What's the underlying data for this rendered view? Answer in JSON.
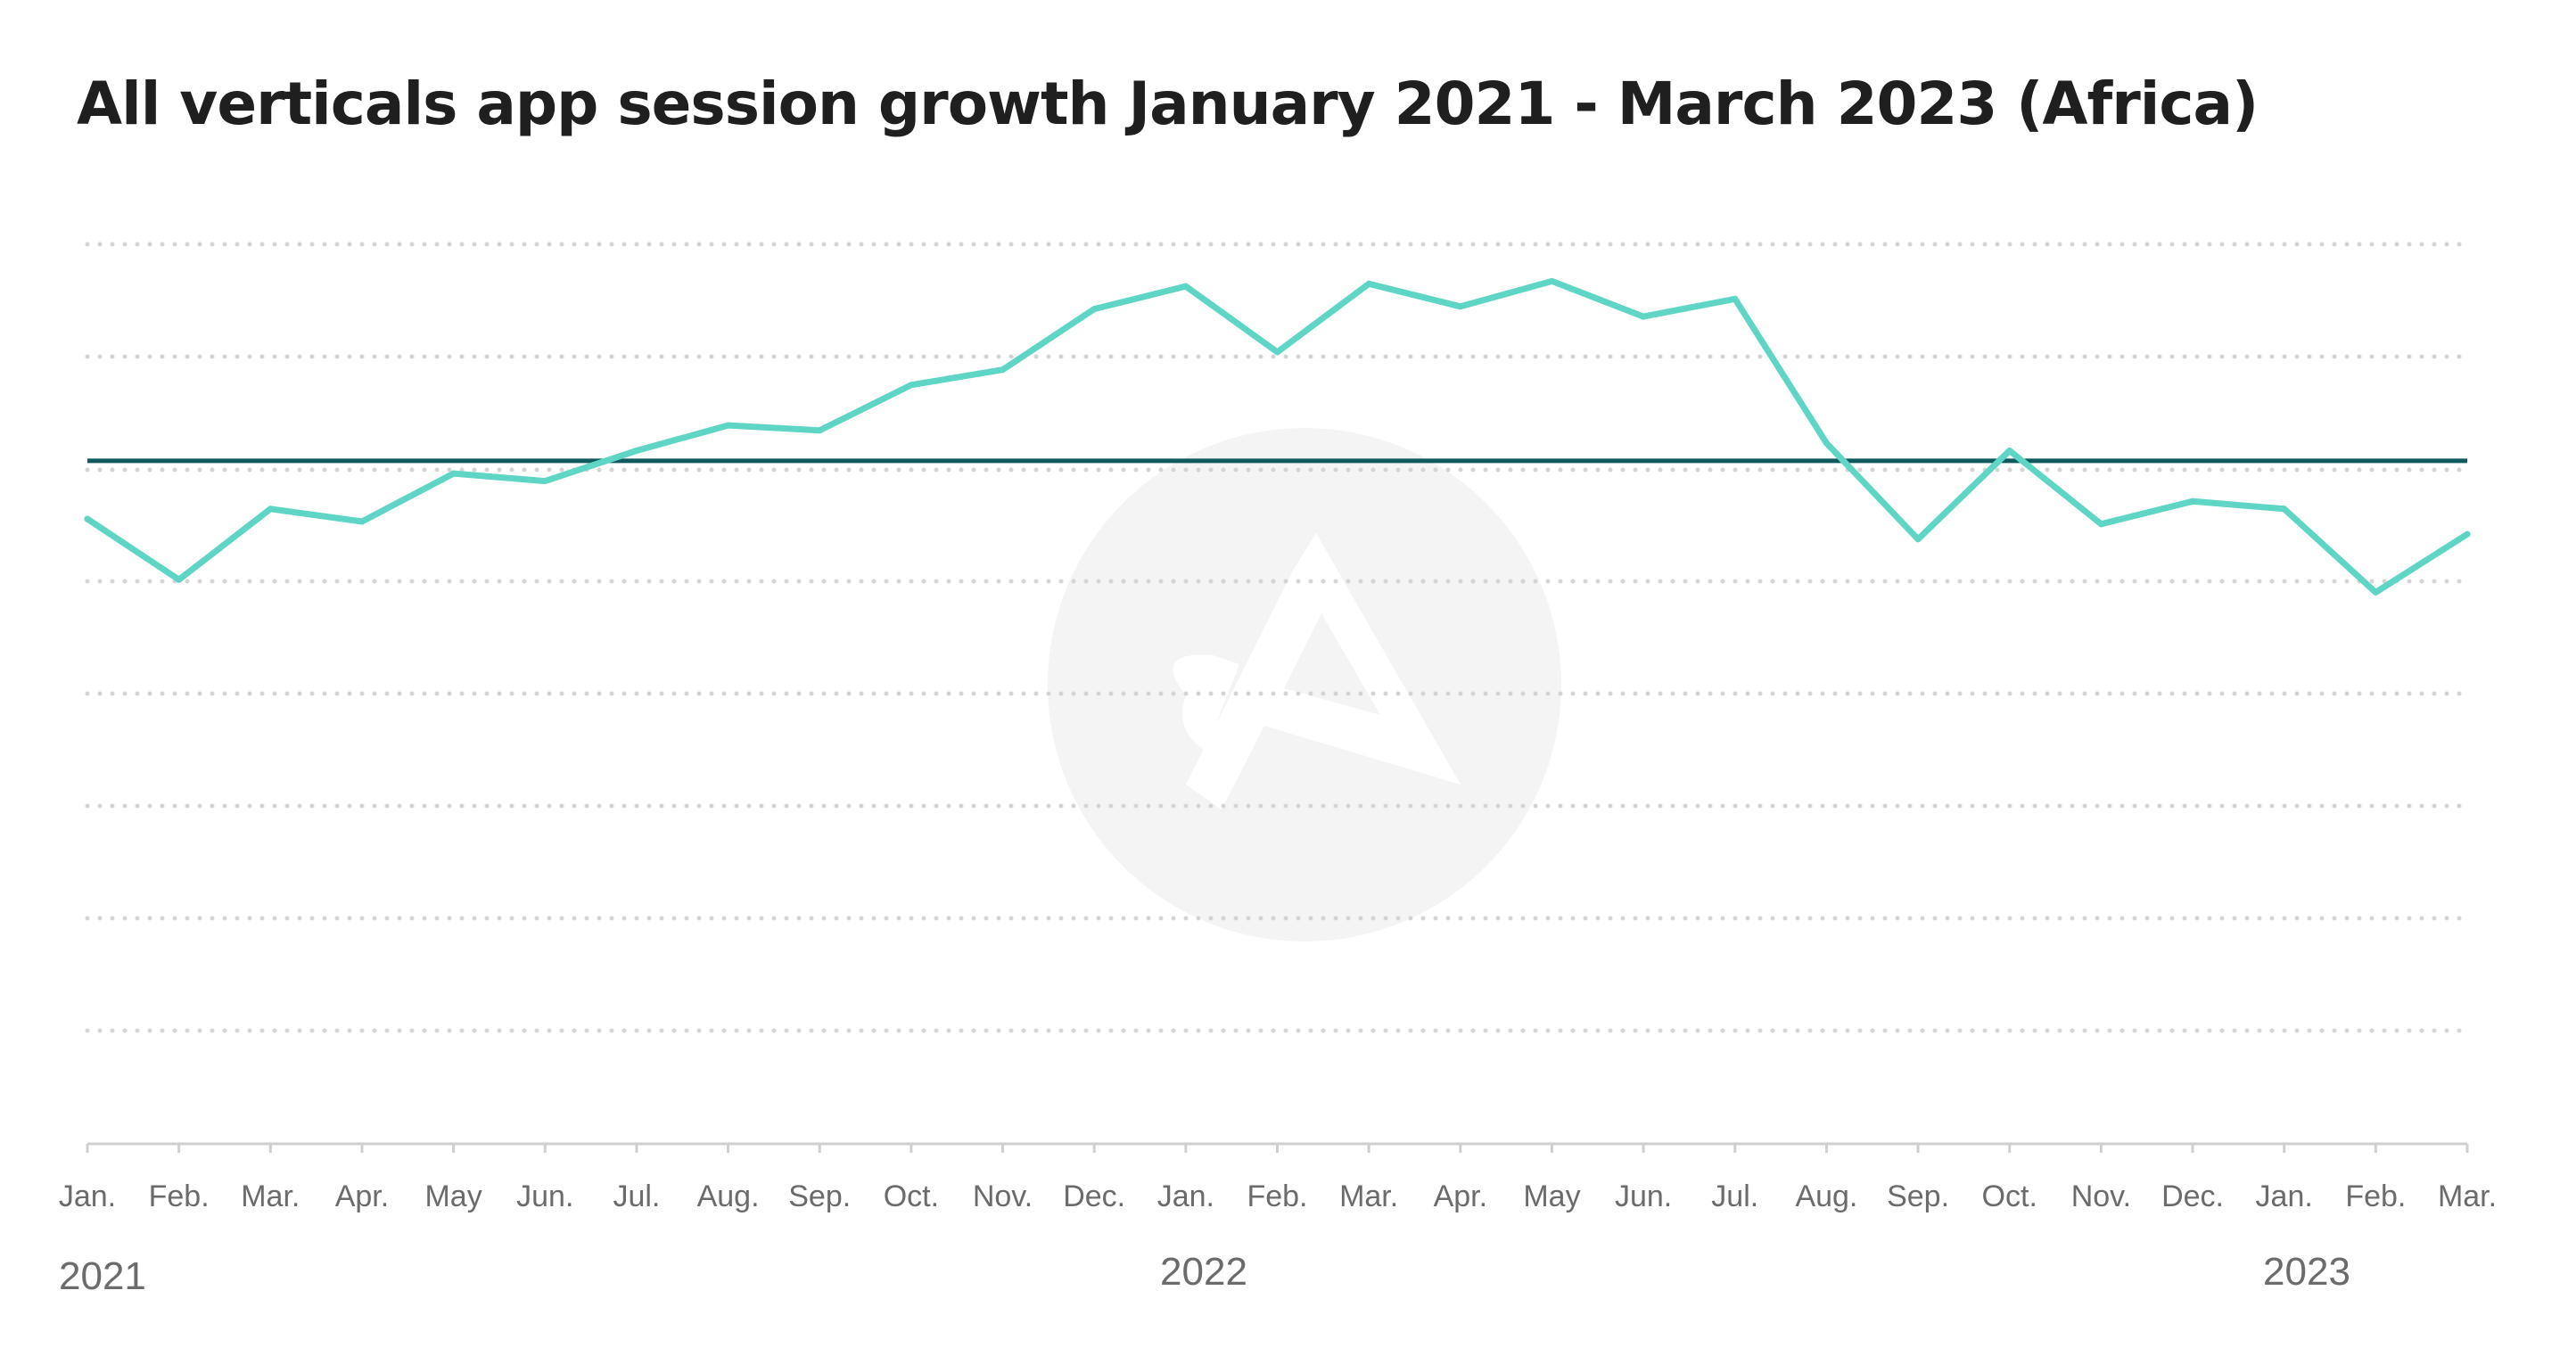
{
  "chart_data": {
    "type": "line",
    "title": "All verticals app session growth January 2021 - March 2023 (Africa)",
    "xlabel": "",
    "ylabel": "",
    "categories": [
      "Jan.",
      "Feb.",
      "Mar.",
      "Apr.",
      "May",
      "Jun.",
      "Jul.",
      "Aug.",
      "Sep.",
      "Oct.",
      "Nov.",
      "Dec.",
      "Jan.",
      "Feb.",
      "Mar.",
      "Apr.",
      "May",
      "Jun.",
      "Jul.",
      "Aug.",
      "Sep.",
      "Oct.",
      "Nov.",
      "Dec.",
      "Jan.",
      "Feb.",
      "Mar."
    ],
    "years": [
      {
        "label": "2021",
        "index": 0
      },
      {
        "label": "2022",
        "index": 12
      },
      {
        "label": "2023",
        "index": 24
      }
    ],
    "series": [
      {
        "values": [
          96.7,
          94.3,
          97.1,
          96.6,
          98.5,
          98.2,
          99.4,
          100.4,
          100.2,
          102.0,
          102.6,
          105.0,
          105.9,
          103.3,
          106.0,
          105.1,
          106.1,
          104.7,
          105.4,
          99.7,
          95.9,
          99.4,
          96.5,
          97.4,
          97.1,
          93.8,
          96.1
        ]
      }
    ],
    "reference_line": 99.0,
    "ylim": [
      72,
      112
    ],
    "y_ticks_shown": false,
    "grid": true,
    "grid_style": "dotted",
    "line_color": "#5fd6c5",
    "reference_color": "#0f5a5e",
    "grid_color": "#d4d4d4",
    "axis_color": "#cfcfcf",
    "label_color": "#6b6b6b",
    "watermark": "adjust-logo-icon"
  }
}
